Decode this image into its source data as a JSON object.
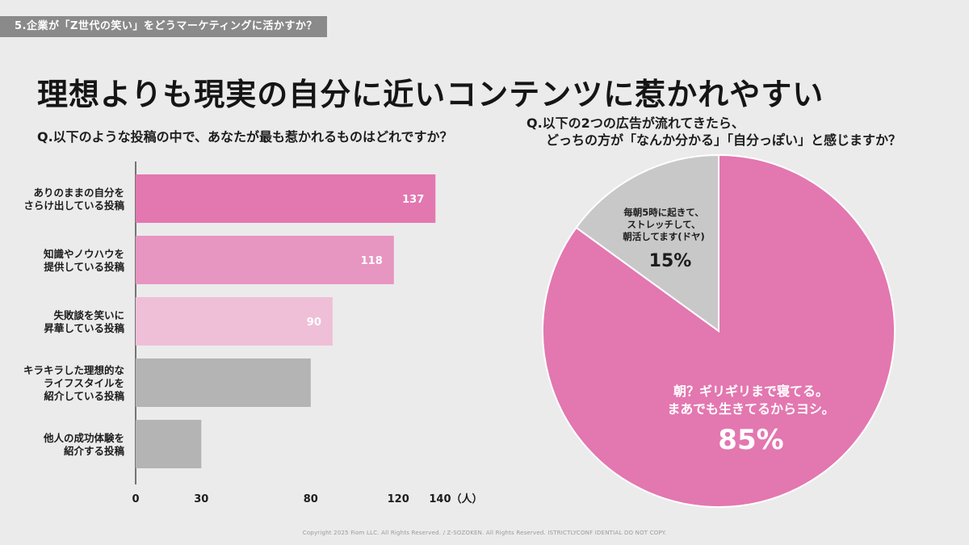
{
  "section_tag": "5.企業が「Z世代の笑い」をどうマーケティングに活かすか？",
  "headline": "理想よりも現実の自分に近いコンテンツに惹かれやすい",
  "copyright": "Copyright 2025 Fiom LLC. All Rights Reserved. / Z-SOZOKEN. All Rights Reserved. ISTRICTLYCONF IDENTIAL DO NOT COPY.",
  "chart_data": [
    {
      "type": "bar",
      "orientation": "horizontal",
      "title": "Q.以下のような投稿の中で、あなたが最も惹かれるものはどれですか？",
      "categories": [
        [
          "ありのままの自分を",
          "さらけ出している投稿"
        ],
        [
          "知識やノウハウを",
          "提供している投稿"
        ],
        [
          "失敗談を笑いに",
          "昇華している投稿"
        ],
        [
          "キラキラした理想的な",
          "ライフスタイルを",
          "紹介している投稿"
        ],
        [
          "他人の成功体験を",
          "紹介する投稿"
        ]
      ],
      "values": [
        137,
        118,
        90,
        80,
        30
      ],
      "data_labels": [
        "137",
        "118",
        "90",
        "",
        ""
      ],
      "colors": [
        "#e377b0",
        "#e795c1",
        "#efbfd8",
        "#b4b4b4",
        "#b4b4b4"
      ],
      "xlim": [
        0,
        140
      ],
      "xticks": [
        "0",
        "30",
        "80",
        "120",
        "140（人）"
      ],
      "xtick_values": [
        0,
        30,
        80,
        120,
        140
      ],
      "grid": false
    },
    {
      "type": "pie",
      "title": [
        "Q.以下の2つの広告が流れてきたら、",
        "どっちの方が「なんか分かる」「自分っぽい」と感じますか？"
      ],
      "slices": [
        {
          "label": [
            "朝？ギリギリまで寝てる。",
            "まあでも生きてるからヨシ。"
          ],
          "value": 85,
          "percent_label": "85%",
          "color": "#e377b0"
        },
        {
          "label": [
            "毎朝5時に起きて、",
            "ストレッチして、",
            "朝活してます(ドヤ)"
          ],
          "value": 15,
          "percent_label": "15%",
          "color": "#c8c8c8"
        }
      ]
    }
  ]
}
